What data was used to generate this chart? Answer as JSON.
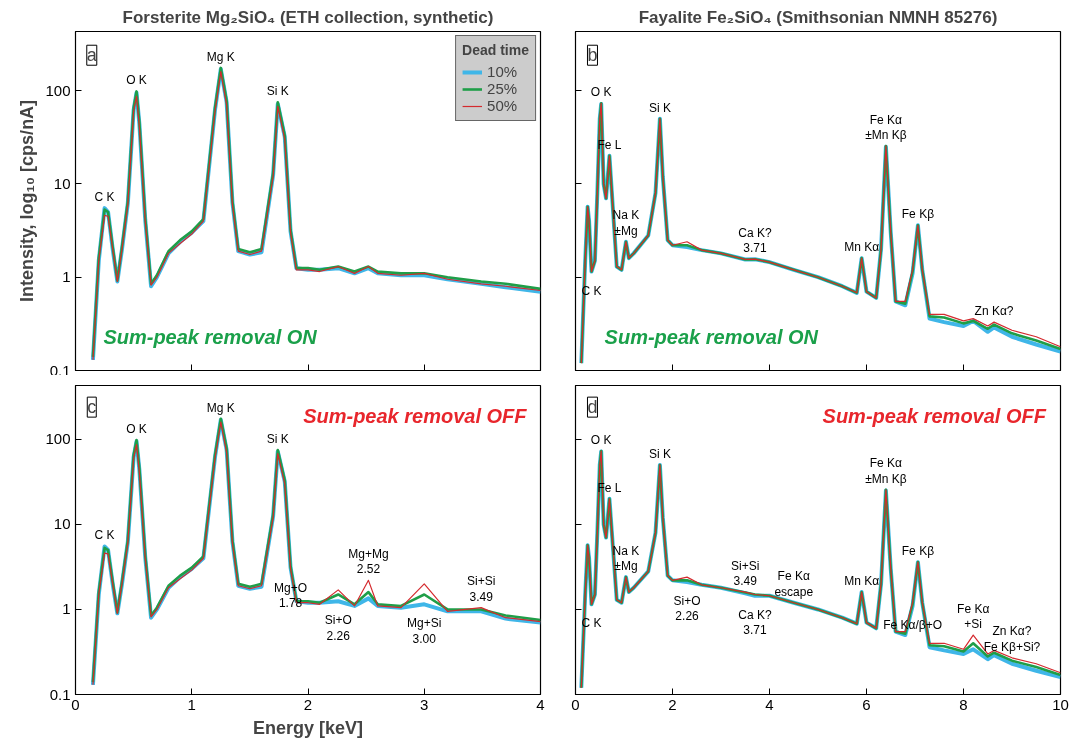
{
  "chart_data": [
    {
      "type": "line",
      "title": "Forsterite Mg₂SiO₄ (ETH collection, synthetic)",
      "ylabel": "Intensity, log₁₀ [cps/nA]",
      "log": true,
      "xlim": [
        0,
        4
      ],
      "ylim": [
        0.1,
        430
      ],
      "xticks": [
        0,
        1,
        2,
        3,
        4
      ],
      "yticks": [
        0.1,
        1,
        10,
        100
      ],
      "tick_labels": "y",
      "legend": "top right",
      "legend_title": "Dead time",
      "x": [
        0.15,
        0.2,
        0.25,
        0.28,
        0.32,
        0.36,
        0.4,
        0.45,
        0.5,
        0.525,
        0.55,
        0.6,
        0.65,
        0.7,
        0.8,
        0.9,
        1.0,
        1.1,
        1.2,
        1.25,
        1.3,
        1.35,
        1.4,
        1.5,
        1.6,
        1.7,
        1.74,
        1.8,
        1.85,
        1.9,
        2.0,
        2.1,
        2.26,
        2.4,
        2.52,
        2.6,
        2.8,
        3.0,
        3.2,
        3.49,
        3.7,
        4.0
      ],
      "series": [
        {
          "name": "10%",
          "color": "#3fb6e8",
          "values": [
            0.13,
            1.5,
            5.5,
            5,
            2,
            0.9,
            2,
            6.2,
            62,
            95,
            43,
            4.1,
            0.8,
            1.0,
            1.8,
            2.4,
            3,
            4,
            62,
            170,
            75,
            6.3,
            1.9,
            1.75,
            1.85,
            12.5,
            72,
            32,
            3.1,
            1.25,
            1.2,
            1.2,
            1.25,
            1.1,
            1.25,
            1.1,
            1.05,
            1.05,
            0.95,
            0.85,
            0.78,
            0.7
          ]
        },
        {
          "name": "25%",
          "color": "#1f9e48",
          "values": [
            0.14,
            1.6,
            5.3,
            5,
            2.1,
            0.92,
            2.1,
            6.5,
            65,
            98,
            45,
            4.3,
            0.85,
            1.05,
            1.9,
            2.5,
            3.1,
            4.2,
            65,
            175,
            78,
            6.5,
            2,
            1.85,
            2.0,
            13,
            75,
            33,
            3.2,
            1.25,
            1.25,
            1.2,
            1.3,
            1.15,
            1.3,
            1.15,
            1.1,
            1.1,
            1.0,
            0.9,
            0.85,
            0.75
          ]
        },
        {
          "name": "50%",
          "color": "#d42a2e",
          "values": [
            0.13,
            1.5,
            4.6,
            4.5,
            2,
            0.9,
            2,
            6,
            60,
            87,
            40,
            4,
            0.82,
            1.0,
            1.8,
            2.3,
            2.9,
            4,
            60,
            160,
            70,
            6,
            1.9,
            1.75,
            1.9,
            12,
            68,
            30,
            3,
            1.2,
            1.2,
            1.15,
            1.3,
            1.1,
            1.3,
            1.1,
            1.05,
            1.1,
            0.95,
            0.85,
            0.8,
            0.72
          ]
        }
      ],
      "annotations": [
        "a",
        "Sum-peak removal ON",
        {
          "text": "C K",
          "x": 0.25,
          "y": 5.5
        },
        {
          "text": "O K",
          "x": 0.525,
          "y": 98
        },
        {
          "text": "Mg K",
          "x": 1.25,
          "y": 175
        },
        {
          "text": "Si K",
          "x": 1.74,
          "y": 75
        }
      ]
    },
    {
      "type": "line",
      "title": "Fayalite Fe₂SiO₄ (Smithsonian NMNH 85276)",
      "log": true,
      "xlim": [
        0,
        10
      ],
      "ylim": [
        0.1,
        430
      ],
      "xticks": [
        0,
        2,
        4,
        6,
        8,
        10
      ],
      "yticks": [
        0.1,
        1,
        10,
        100
      ],
      "tick_labels": false,
      "x": [
        0.12,
        0.2,
        0.25,
        0.28,
        0.33,
        0.4,
        0.45,
        0.5,
        0.53,
        0.58,
        0.63,
        0.7,
        0.75,
        0.85,
        0.95,
        1.04,
        1.1,
        1.2,
        1.5,
        1.65,
        1.74,
        1.8,
        1.9,
        2.0,
        2.3,
        2.6,
        3.0,
        3.5,
        3.7,
        4.0,
        4.5,
        5.0,
        5.5,
        5.8,
        5.9,
        6.0,
        6.2,
        6.3,
        6.4,
        6.5,
        6.6,
        6.8,
        6.95,
        7.06,
        7.15,
        7.3,
        7.6,
        8.0,
        8.2,
        8.5,
        8.63,
        9.0,
        9.5,
        10.0
      ],
      "series": [
        {
          "color": "#3fb6e8",
          "values": [
            0.12,
            1.5,
            5.7,
            4,
            1.15,
            1.5,
            8,
            50,
            72,
            10,
            7,
            20,
            8,
            1.3,
            1.2,
            2.4,
            1.6,
            1.8,
            2.8,
            8,
            50,
            12,
            2.5,
            2.2,
            2.1,
            1.95,
            1.8,
            1.55,
            1.56,
            1.45,
            1.2,
            1.0,
            0.8,
            0.68,
            1.6,
            0.7,
            0.6,
            2,
            25,
            3,
            0.55,
            0.5,
            1.1,
            3.6,
            1.2,
            0.36,
            0.33,
            0.3,
            0.34,
            0.26,
            0.29,
            0.23,
            0.19,
            0.16
          ]
        },
        {
          "color": "#1f9e48",
          "values": [
            0.12,
            1.5,
            5.7,
            4,
            1.15,
            1.5,
            8,
            50,
            73,
            10,
            7,
            20,
            8,
            1.3,
            1.2,
            2.4,
            1.6,
            1.8,
            2.8,
            8,
            50,
            12,
            2.5,
            2.2,
            2.2,
            1.95,
            1.8,
            1.55,
            1.56,
            1.45,
            1.2,
            1.0,
            0.8,
            0.68,
            1.6,
            0.7,
            0.6,
            2,
            25.5,
            3,
            0.55,
            0.52,
            1.15,
            3.6,
            1.2,
            0.38,
            0.37,
            0.32,
            0.34,
            0.28,
            0.31,
            0.25,
            0.21,
            0.17
          ]
        },
        {
          "color": "#d42a2e",
          "values": [
            0.12,
            1.5,
            5.7,
            4,
            1.15,
            1.5,
            8,
            50,
            73,
            10,
            7,
            20,
            8,
            1.3,
            1.2,
            2.4,
            1.6,
            1.8,
            2.8,
            8,
            50,
            12,
            2.5,
            2.2,
            2.4,
            1.95,
            1.8,
            1.55,
            1.56,
            1.45,
            1.2,
            1.0,
            0.8,
            0.68,
            1.6,
            0.7,
            0.6,
            2,
            25.5,
            3,
            0.55,
            0.55,
            1.2,
            3.6,
            1.2,
            0.4,
            0.4,
            0.34,
            0.36,
            0.3,
            0.33,
            0.27,
            0.23,
            0.18
          ]
        }
      ],
      "annotations": [
        "b",
        "Sum-peak removal ON",
        {
          "text": "O K",
          "x": 0.53,
          "y": 73
        },
        {
          "text": "Fe L",
          "x": 0.7,
          "y": 20
        },
        {
          "text": "Na K\n±Mg",
          "x": 1.04,
          "y": 2.4
        },
        {
          "text": "Si K",
          "x": 1.74,
          "y": 50
        },
        {
          "text": "C K",
          "x": 0.33,
          "y": 1.15
        },
        {
          "text": "Ca K?\n3.71",
          "x": 3.7,
          "y": 1.56
        },
        {
          "text": "Mn Kα",
          "x": 5.9,
          "y": 1.6
        },
        {
          "text": "Fe Kα\n±Mn Kβ",
          "x": 6.4,
          "y": 25.5
        },
        {
          "text": "Fe Kβ",
          "x": 7.06,
          "y": 3.6
        },
        {
          "text": "Zn Kα?",
          "x": 8.63,
          "y": 0.33
        }
      ]
    },
    {
      "type": "line",
      "xlabel": "Energy [keV]",
      "log": true,
      "xlim": [
        0,
        4
      ],
      "ylim": [
        0.1,
        430
      ],
      "xticks": [
        0,
        1,
        2,
        3,
        4
      ],
      "yticks": [
        0.1,
        1,
        10,
        100
      ],
      "x": [
        0.15,
        0.2,
        0.25,
        0.28,
        0.32,
        0.36,
        0.4,
        0.45,
        0.5,
        0.525,
        0.55,
        0.6,
        0.65,
        0.7,
        0.8,
        0.9,
        1.0,
        1.1,
        1.2,
        1.25,
        1.3,
        1.35,
        1.4,
        1.5,
        1.6,
        1.7,
        1.74,
        1.8,
        1.85,
        1.9,
        2.0,
        2.1,
        2.26,
        2.4,
        2.52,
        2.6,
        2.8,
        3.0,
        3.2,
        3.49,
        3.7,
        4.0
      ],
      "series": [
        {
          "color": "#3fb6e8",
          "values": [
            0.13,
            1.5,
            5.5,
            5,
            2,
            0.9,
            2,
            6.2,
            62,
            95,
            43,
            4.1,
            0.8,
            1.0,
            1.8,
            2.4,
            3,
            4,
            62,
            170,
            75,
            6.3,
            1.9,
            1.75,
            1.85,
            12.5,
            72,
            32,
            3.1,
            1.25,
            1.2,
            1.2,
            1.25,
            1.1,
            1.35,
            1.1,
            1.05,
            1.15,
            0.95,
            0.95,
            0.78,
            0.7
          ]
        },
        {
          "color": "#1f9e48",
          "values": [
            0.14,
            1.6,
            5.3,
            5,
            2.1,
            0.92,
            2.1,
            6.5,
            65,
            98,
            45,
            4.3,
            0.85,
            1.05,
            1.9,
            2.5,
            3.1,
            4.2,
            65,
            175,
            78,
            6.5,
            2,
            1.85,
            2.0,
            13,
            75,
            33,
            3.2,
            1.25,
            1.25,
            1.2,
            1.5,
            1.15,
            1.6,
            1.15,
            1.1,
            1.5,
            1.0,
            1.0,
            0.85,
            0.75
          ]
        },
        {
          "color": "#d42a2e",
          "values": [
            0.13,
            1.5,
            4.6,
            4.5,
            2,
            0.9,
            2,
            6,
            60,
            87,
            40,
            4,
            0.82,
            1.0,
            1.8,
            2.3,
            2.9,
            4,
            60,
            160,
            70,
            6,
            1.9,
            1.75,
            1.9,
            12,
            68,
            30,
            3,
            1.2,
            1.2,
            1.15,
            1.7,
            1.1,
            2.2,
            1.1,
            1.05,
            2.0,
            0.95,
            1.05,
            0.8,
            0.72
          ]
        }
      ],
      "annotations": [
        "c",
        "Sum-peak removal OFF",
        {
          "text": "C K",
          "x": 0.25,
          "y": 5.5
        },
        {
          "text": "O K",
          "x": 0.525,
          "y": 98
        },
        {
          "text": "Mg K",
          "x": 1.25,
          "y": 175
        },
        {
          "text": "Si K",
          "x": 1.74,
          "y": 75
        },
        {
          "text": "Mg+O\n1.78",
          "x": 1.85,
          "y": 3
        },
        {
          "text": "Si+O\n2.26",
          "x": 2.26,
          "y": 1.25
        },
        {
          "text": "Mg+Mg\n2.52",
          "x": 2.52,
          "y": 2.2
        },
        {
          "text": "Mg+Si\n3.00",
          "x": 3.0,
          "y": 1.15
        },
        {
          "text": "Si+Si\n3.49",
          "x": 3.49,
          "y": 1.05
        }
      ]
    },
    {
      "type": "line",
      "log": true,
      "xlim": [
        0,
        10
      ],
      "ylim": [
        0.1,
        430
      ],
      "xticks": [
        0,
        2,
        4,
        6,
        8,
        10
      ],
      "yticks": [
        0.1,
        1,
        10,
        100
      ],
      "tick_labels": "x",
      "x": [
        0.12,
        0.2,
        0.25,
        0.28,
        0.33,
        0.4,
        0.45,
        0.5,
        0.53,
        0.58,
        0.63,
        0.7,
        0.75,
        0.85,
        0.95,
        1.04,
        1.1,
        1.2,
        1.5,
        1.65,
        1.74,
        1.8,
        1.9,
        2.0,
        2.3,
        2.6,
        3.0,
        3.5,
        3.7,
        4.0,
        4.5,
        5.0,
        5.5,
        5.8,
        5.9,
        6.0,
        6.2,
        6.3,
        6.4,
        6.5,
        6.6,
        6.8,
        6.95,
        7.06,
        7.15,
        7.3,
        7.6,
        8.0,
        8.2,
        8.5,
        8.63,
        9.0,
        9.5,
        10.0
      ],
      "series": [
        {
          "color": "#3fb6e8",
          "values": [
            0.12,
            1.5,
            5.7,
            4,
            1.15,
            1.5,
            8,
            50,
            72,
            10,
            7,
            20,
            8,
            1.3,
            1.2,
            2.4,
            1.6,
            1.8,
            2.8,
            8,
            50,
            12,
            2.5,
            2.2,
            2.1,
            1.95,
            1.8,
            1.55,
            1.45,
            1.45,
            1.2,
            1.0,
            0.8,
            0.68,
            1.6,
            0.7,
            0.6,
            2,
            25,
            3,
            0.55,
            0.5,
            1.1,
            3.6,
            1.2,
            0.36,
            0.33,
            0.3,
            0.34,
            0.26,
            0.29,
            0.23,
            0.19,
            0.16
          ]
        },
        {
          "color": "#1f9e48",
          "values": [
            0.12,
            1.5,
            5.7,
            4,
            1.15,
            1.5,
            8,
            50,
            73,
            10,
            7,
            20,
            8,
            1.3,
            1.2,
            2.4,
            1.6,
            1.8,
            2.8,
            8,
            50,
            12,
            2.5,
            2.2,
            2.2,
            1.95,
            1.8,
            1.58,
            1.5,
            1.45,
            1.2,
            1.0,
            0.8,
            0.68,
            1.6,
            0.7,
            0.6,
            2,
            25.5,
            3,
            0.55,
            0.52,
            1.15,
            3.6,
            1.2,
            0.38,
            0.37,
            0.32,
            0.4,
            0.28,
            0.31,
            0.25,
            0.21,
            0.17
          ]
        },
        {
          "color": "#d42a2e",
          "values": [
            0.12,
            1.5,
            5.7,
            4,
            1.15,
            1.5,
            8,
            50,
            73,
            10,
            7,
            20,
            8,
            1.3,
            1.2,
            2.4,
            1.6,
            1.8,
            2.8,
            8,
            50,
            12,
            2.5,
            2.2,
            2.4,
            1.95,
            1.8,
            1.6,
            1.5,
            1.45,
            1.2,
            1.0,
            0.8,
            0.68,
            1.6,
            0.7,
            0.6,
            2,
            25.5,
            3,
            0.55,
            0.55,
            1.2,
            3.6,
            1.2,
            0.4,
            0.4,
            0.34,
            0.5,
            0.3,
            0.33,
            0.27,
            0.23,
            0.18
          ]
        }
      ],
      "annotations": [
        "d",
        "Sum-peak removal OFF",
        {
          "text": "O K",
          "x": 0.53,
          "y": 73
        },
        {
          "text": "Fe L",
          "x": 0.7,
          "y": 20
        },
        {
          "text": "Na K\n±Mg",
          "x": 1.04,
          "y": 2.4
        },
        {
          "text": "Si K",
          "x": 1.74,
          "y": 50
        },
        {
          "text": "C K",
          "x": 0.33,
          "y": 1.15
        },
        {
          "text": "Si+Si\n3.49",
          "x": 3.5,
          "y": 1.6
        },
        {
          "text": "Si+O\n2.26",
          "x": 2.3,
          "y": 2.1
        },
        {
          "text": "Ca K?\n3.71",
          "x": 3.7,
          "y": 1.45
        },
        {
          "text": "Fe Kα\nescape",
          "x": 4.5,
          "y": 1.2
        },
        {
          "text": "Mn Kα",
          "x": 5.9,
          "y": 1.6
        },
        {
          "text": "Fe Kα\n±Mn Kβ",
          "x": 6.4,
          "y": 25.5
        },
        {
          "text": "Fe Kβ",
          "x": 7.06,
          "y": 3.6
        },
        {
          "text": "Fe Kα\n+Si",
          "x": 8.2,
          "y": 0.5
        },
        {
          "text": "Zn Kα?\nFe Kβ+Si?",
          "x": 9.0,
          "y": 0.27
        },
        {
          "text": "Fe Kα/β+O",
          "x": 6.95,
          "y": 1.1
        }
      ]
    }
  ]
}
